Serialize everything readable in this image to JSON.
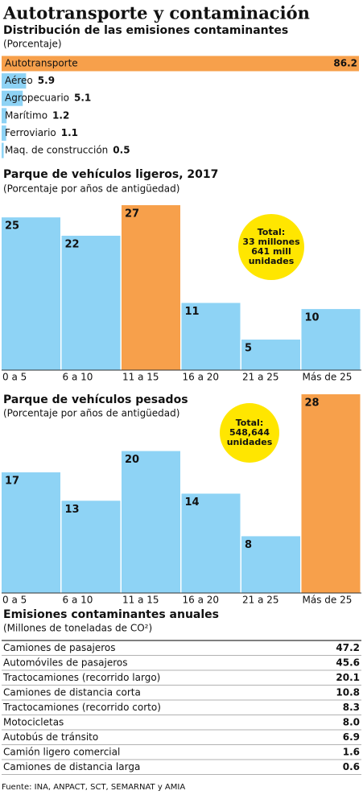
{
  "title": "Autotransporte y contaminación",
  "chart_data": [
    {
      "type": "hbar",
      "title": "Distribución de las emisiones contaminantes",
      "subtitle": "(Porcentaje)",
      "categories": [
        "Autotransporte",
        "Aéreo",
        "Agropecuario",
        "Marítimo",
        "Ferroviario",
        "Maq. de construcción"
      ],
      "values": [
        86.2,
        5.9,
        5.1,
        1.2,
        1.1,
        0.5
      ],
      "colors": [
        "#f7a04b",
        "#8ed3f5",
        "#8ed3f5",
        "#8ed3f5",
        "#8ed3f5",
        "#8ed3f5"
      ],
      "xlim": [
        0,
        86.2
      ]
    },
    {
      "type": "bar",
      "title": "Parque de vehículos ligeros, 2017",
      "subtitle": "(Porcentaje por años de antigüedad)",
      "categories": [
        "0 a 5",
        "6 a 10",
        "11 a 15",
        "16 a 20",
        "21 a 25",
        "Más de 25"
      ],
      "values": [
        25,
        22,
        27,
        11,
        5,
        10
      ],
      "colors": [
        "#8ed3f5",
        "#8ed3f5",
        "#f7a04b",
        "#8ed3f5",
        "#8ed3f5",
        "#8ed3f5"
      ],
      "ylim": [
        0,
        27
      ],
      "annotation": [
        "Total:",
        "33 millones",
        "641 mill",
        "unidades"
      ]
    },
    {
      "type": "bar",
      "title": "Parque de vehículos pesados",
      "subtitle": "(Porcentaje por años de antigüedad)",
      "categories": [
        "0 a 5",
        "6 a 10",
        "11 a 15",
        "16 a 20",
        "21 a 25",
        "Más de 25"
      ],
      "values": [
        17,
        13,
        20,
        14,
        8,
        28
      ],
      "colors": [
        "#8ed3f5",
        "#8ed3f5",
        "#8ed3f5",
        "#8ed3f5",
        "#8ed3f5",
        "#f7a04b"
      ],
      "ylim": [
        0,
        28
      ],
      "annotation": [
        "Total:",
        "548,644",
        "unidades"
      ]
    },
    {
      "type": "table",
      "title": "Emisiones contaminantes anuales",
      "subtitle": "(Millones de toneladas de CO²)",
      "categories": [
        "Camiones de pasajeros",
        "Automóviles de pasajeros",
        "Tractocamiones (recorrido largo)",
        "Camiones de distancia corta",
        "Tractocamiones (recorrido corto)",
        "Motocicletas",
        "Autobús de tránsito",
        "Camión ligero comercial",
        "Camiones de distancia larga"
      ],
      "values": [
        47.2,
        45.6,
        20.1,
        10.8,
        8.3,
        8.0,
        6.9,
        1.6,
        0.6
      ],
      "value_labels": [
        "47.2",
        "45.6",
        "20.1",
        "10.8",
        "8.3",
        "8.0",
        "6.9",
        "1.6",
        "0.6"
      ]
    }
  ],
  "source": "Fuente: INA, ANPACT, SCT, SEMARNAT y AMIA"
}
